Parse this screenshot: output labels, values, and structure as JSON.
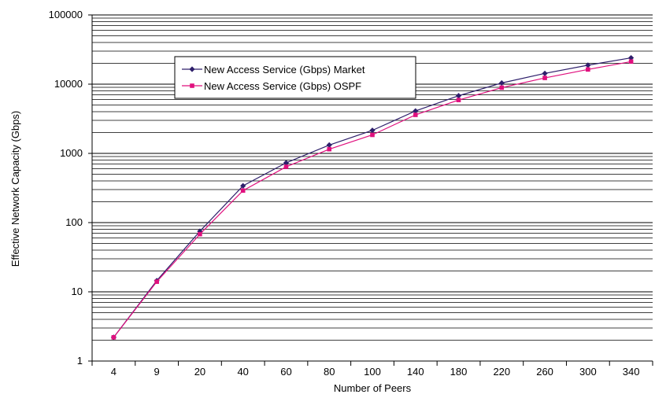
{
  "chart_data": {
    "type": "line",
    "xlabel": "Number of Peers",
    "ylabel": "Effective Network Capacity (Gbps)",
    "y_scale": "log",
    "ylim": [
      1,
      100000
    ],
    "y_ticks": [
      1,
      10,
      100,
      1000,
      10000,
      100000
    ],
    "y_tick_labels": [
      "1",
      "10",
      "100",
      "1000",
      "10000",
      "100000"
    ],
    "grid": true,
    "legend_placement": "upper-left",
    "categories": [
      "4",
      "9",
      "20",
      "40",
      "60",
      "80",
      "100",
      "140",
      "180",
      "220",
      "260",
      "300",
      "340"
    ],
    "series": [
      {
        "name": "New Access Service (Gbps) Market",
        "color": "#2e1f6b",
        "marker": "diamond",
        "values": [
          2.2,
          14.5,
          75,
          340,
          730,
          1320,
          2150,
          4100,
          6800,
          10400,
          14300,
          18800,
          24000
        ]
      },
      {
        "name": "New Access Service (Gbps) OSPF",
        "color": "#e0107e",
        "marker": "square",
        "values": [
          2.2,
          14,
          68,
          290,
          640,
          1150,
          1850,
          3600,
          5900,
          8900,
          12300,
          16300,
          21200
        ]
      }
    ]
  }
}
